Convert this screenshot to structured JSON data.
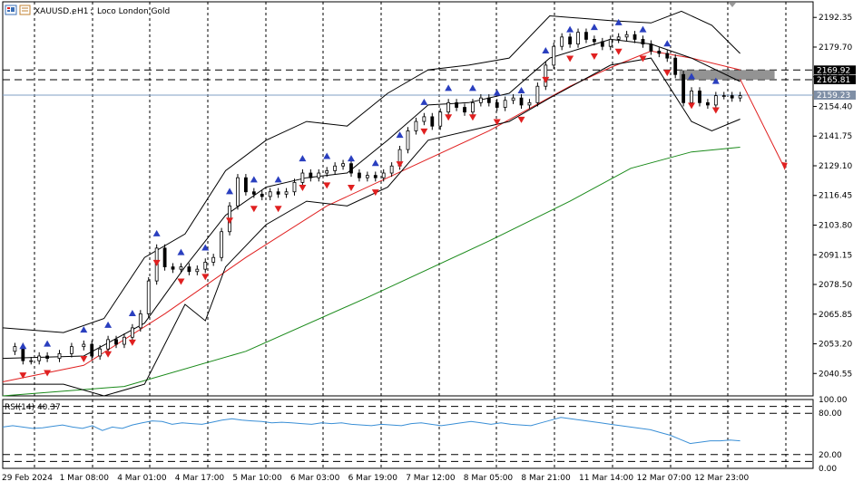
{
  "header": {
    "symbol": "XAUUSD.e",
    "timeframe": "H1",
    "description": "Loco London Gold",
    "icon": "chart-window-icon"
  },
  "colors": {
    "bullish_candle": "#000000",
    "bearish_candle": "#000000",
    "bollinger": "#000000",
    "ma_fast": "#e02020",
    "ma_slow": "#1a8a1a",
    "rsi_line": "#3a8fd6",
    "up_arrow": "#2a3fbf",
    "down_arrow": "#e02020",
    "price_label_bg": "#7f8fa6",
    "level_label_bg": "#000000",
    "zone": "#808080"
  },
  "chart_data": [
    {
      "type": "line",
      "title": "XAUUSD.e, H1: Loco London Gold",
      "ylim": [
        2031,
        2199
      ],
      "y_ticks": [
        2040.55,
        2053.2,
        2065.85,
        2078.5,
        2091.15,
        2103.8,
        2116.45,
        2129.1,
        2141.75,
        2154.4,
        2167.05,
        2179.7,
        2192.35
      ],
      "y_tick_labels": [
        "2040.55",
        "2053.20",
        "2065.85",
        "2078.50",
        "2091.15",
        "2103.80",
        "2116.45",
        "2129.10",
        "2141.75",
        "2154.40",
        "2167.05",
        "2179.70",
        "2192.35"
      ],
      "x_tick_labels": [
        "29 Feb 2024",
        "1 Mar 08:00",
        "4 Mar 01:00",
        "4 Mar 17:00",
        "5 Mar 10:00",
        "6 Mar 03:00",
        "6 Mar 19:00",
        "7 Mar 12:00",
        "8 Mar 05:00",
        "8 Mar 21:00",
        "11 Mar 14:00",
        "12 Mar 07:00",
        "12 Mar 23:00"
      ],
      "current_price": 2159.23,
      "current_price_label": "2159.23",
      "levels": [
        {
          "value": 2169.92,
          "label": "2169.92",
          "style": "dashed"
        },
        {
          "value": 2165.81,
          "label": "2165.81",
          "style": "dashed"
        }
      ],
      "close_path": [
        [
          0,
          2050
        ],
        [
          6,
          2052
        ],
        [
          10,
          2046
        ],
        [
          14,
          2046
        ],
        [
          18,
          2048
        ],
        [
          22,
          2047
        ],
        [
          28,
          2049
        ],
        [
          34,
          2052
        ],
        [
          40,
          2053
        ],
        [
          44,
          2048
        ],
        [
          48,
          2051
        ],
        [
          52,
          2055
        ],
        [
          56,
          2053
        ],
        [
          60,
          2056
        ],
        [
          64,
          2060
        ],
        [
          68,
          2066
        ],
        [
          72,
          2080
        ],
        [
          76,
          2094
        ],
        [
          80,
          2086
        ],
        [
          84,
          2085
        ],
        [
          88,
          2086
        ],
        [
          92,
          2084
        ],
        [
          96,
          2085
        ],
        [
          100,
          2088
        ],
        [
          104,
          2090
        ],
        [
          108,
          2101
        ],
        [
          112,
          2112
        ],
        [
          116,
          2124
        ],
        [
          120,
          2118
        ],
        [
          124,
          2117
        ],
        [
          128,
          2116
        ],
        [
          132,
          2118
        ],
        [
          136,
          2117
        ],
        [
          140,
          2118
        ],
        [
          144,
          2122
        ],
        [
          148,
          2126
        ],
        [
          152,
          2124
        ],
        [
          156,
          2126
        ],
        [
          160,
          2127
        ],
        [
          164,
          2129
        ],
        [
          168,
          2130
        ],
        [
          172,
          2126
        ],
        [
          176,
          2124
        ],
        [
          180,
          2125
        ],
        [
          184,
          2124
        ],
        [
          188,
          2126
        ],
        [
          192,
          2129
        ],
        [
          196,
          2136
        ],
        [
          200,
          2144
        ],
        [
          204,
          2148
        ],
        [
          208,
          2150
        ],
        [
          212,
          2146
        ],
        [
          216,
          2152
        ],
        [
          220,
          2156
        ],
        [
          224,
          2154
        ],
        [
          228,
          2152
        ],
        [
          232,
          2156
        ],
        [
          236,
          2158
        ],
        [
          240,
          2156
        ],
        [
          244,
          2154
        ],
        [
          248,
          2157
        ],
        [
          252,
          2158
        ],
        [
          256,
          2155
        ],
        [
          260,
          2156
        ],
        [
          264,
          2163
        ],
        [
          268,
          2172
        ],
        [
          272,
          2180
        ],
        [
          276,
          2184
        ],
        [
          280,
          2181
        ],
        [
          284,
          2186
        ],
        [
          288,
          2183
        ],
        [
          292,
          2182
        ],
        [
          296,
          2180
        ],
        [
          300,
          2183
        ],
        [
          304,
          2184
        ],
        [
          308,
          2185
        ],
        [
          312,
          2183
        ],
        [
          316,
          2181
        ],
        [
          320,
          2178
        ],
        [
          324,
          2177
        ],
        [
          328,
          2175
        ],
        [
          332,
          2168
        ],
        [
          336,
          2156
        ],
        [
          340,
          2161
        ],
        [
          344,
          2156
        ],
        [
          348,
          2155
        ],
        [
          352,
          2159
        ],
        [
          356,
          2159
        ],
        [
          360,
          2158
        ],
        [
          364,
          2159
        ]
      ],
      "series": [
        {
          "key": "ma_fast",
          "points": [
            [
              0,
              2037
            ],
            [
              40,
              2044
            ],
            [
              80,
              2066
            ],
            [
              120,
              2090
            ],
            [
              160,
              2112
            ],
            [
              200,
              2128
            ],
            [
              240,
              2144
            ],
            [
              280,
              2163
            ],
            [
              300,
              2171
            ],
            [
              320,
              2178
            ],
            [
              340,
              2175
            ],
            [
              364,
              2170
            ]
          ]
        },
        {
          "key": "ma_slow",
          "points": [
            [
              0,
              2031
            ],
            [
              60,
              2035
            ],
            [
              120,
              2050
            ],
            [
              180,
              2073
            ],
            [
              240,
              2097
            ],
            [
              280,
              2114
            ],
            [
              310,
              2128
            ],
            [
              340,
              2135
            ],
            [
              364,
              2137
            ]
          ]
        },
        {
          "key": "bb_upper",
          "points": [
            [
              0,
              2060
            ],
            [
              30,
              2058
            ],
            [
              50,
              2064
            ],
            [
              70,
              2090
            ],
            [
              90,
              2100
            ],
            [
              110,
              2127
            ],
            [
              130,
              2140
            ],
            [
              150,
              2148
            ],
            [
              170,
              2146
            ],
            [
              190,
              2160
            ],
            [
              210,
              2170
            ],
            [
              230,
              2172
            ],
            [
              250,
              2175
            ],
            [
              270,
              2193
            ],
            [
              300,
              2191
            ],
            [
              320,
              2190
            ],
            [
              335,
              2195
            ],
            [
              350,
              2189
            ],
            [
              364,
              2177
            ]
          ]
        },
        {
          "key": "bb_middle",
          "points": [
            [
              0,
              2047
            ],
            [
              40,
              2048
            ],
            [
              70,
              2062
            ],
            [
              90,
              2086
            ],
            [
              110,
              2108
            ],
            [
              130,
              2120
            ],
            [
              150,
              2124
            ],
            [
              170,
              2126
            ],
            [
              190,
              2140
            ],
            [
              210,
              2155
            ],
            [
              230,
              2156
            ],
            [
              250,
              2160
            ],
            [
              270,
              2175
            ],
            [
              300,
              2183
            ],
            [
              320,
              2181
            ],
            [
              340,
              2175
            ],
            [
              364,
              2165
            ]
          ]
        },
        {
          "key": "bb_lower",
          "points": [
            [
              0,
              2036
            ],
            [
              30,
              2036
            ],
            [
              50,
              2031
            ],
            [
              70,
              2036
            ],
            [
              90,
              2070
            ],
            [
              100,
              2063
            ],
            [
              110,
              2086
            ],
            [
              130,
              2104
            ],
            [
              150,
              2114
            ],
            [
              170,
              2112
            ],
            [
              190,
              2120
            ],
            [
              210,
              2140
            ],
            [
              230,
              2144
            ],
            [
              250,
              2148
            ],
            [
              270,
              2158
            ],
            [
              300,
              2172
            ],
            [
              320,
              2175
            ],
            [
              340,
              2148
            ],
            [
              350,
              2144
            ],
            [
              364,
              2149
            ]
          ]
        }
      ],
      "arrow_projection": [
        [
          364,
          2166
        ],
        [
          386,
          2128
        ]
      ]
    },
    {
      "type": "line",
      "title": "RSI(14) 40.37",
      "ylim": [
        0,
        100
      ],
      "y_ticks": [
        0,
        20,
        80,
        100
      ],
      "y_tick_labels": [
        "0.00",
        "20.00",
        "80.00",
        "100.00"
      ],
      "levels": [
        {
          "value": 0
        },
        {
          "value": 10
        },
        {
          "value": 20
        },
        {
          "value": 80
        },
        {
          "value": 90
        },
        {
          "value": 100
        }
      ],
      "values": [
        60,
        62,
        60,
        58,
        59,
        61,
        63,
        60,
        58,
        62,
        55,
        60,
        58,
        63,
        66,
        69,
        68,
        64,
        66,
        65,
        64,
        67,
        70,
        72,
        70,
        69,
        68,
        66,
        67,
        66,
        65,
        64,
        66,
        65,
        66,
        64,
        63,
        62,
        64,
        63,
        62,
        65,
        66,
        64,
        62,
        64,
        66,
        68,
        66,
        64,
        66,
        64,
        63,
        62,
        66,
        70,
        74,
        72,
        70,
        68,
        66,
        64,
        62,
        60,
        58,
        56,
        52,
        48,
        42,
        36,
        38,
        40,
        40,
        41,
        40
      ]
    }
  ]
}
